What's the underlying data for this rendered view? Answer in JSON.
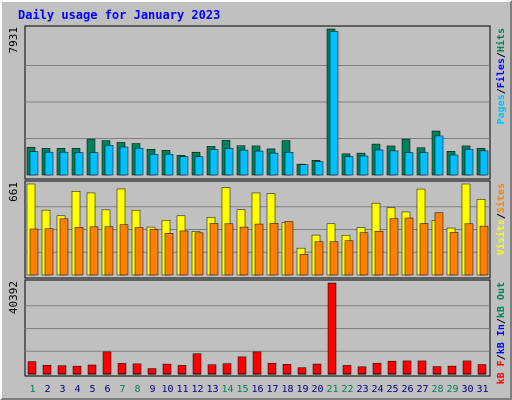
{
  "title": "Daily usage for January 2023",
  "colors": {
    "pages": "#008080",
    "files": "#00c0ff",
    "hits": "#00805c",
    "visits": "#ffff00",
    "sites": "#ff8000",
    "kb_out": "#ff8000",
    "kb_in": "#0000ff",
    "kb_f": "#ff0000",
    "weekend_label": "#00805c",
    "weekday_label": "#000080",
    "title": "#0000ff",
    "plot_bg": "#c0c0c0",
    "grid": "#808080"
  },
  "chart_data": [
    {
      "type": "bar",
      "panel": "top",
      "y_max_label": "7931",
      "ylim": [
        0,
        7931
      ],
      "right_label": [
        {
          "text": "Pages",
          "color": "#00c0ff"
        },
        {
          "text": "/",
          "color": "#000000"
        },
        {
          "text": "Files",
          "color": "#0000ff"
        },
        {
          "text": "/",
          "color": "#000000"
        },
        {
          "text": "Hits",
          "color": "#00805c"
        }
      ],
      "series": [
        {
          "name": "Hits",
          "color": "#00805c",
          "values": [
            1510,
            1450,
            1450,
            1450,
            1950,
            1870,
            1770,
            1710,
            1400,
            1340,
            1070,
            1240,
            1560,
            1880,
            1590,
            1580,
            1420,
            1870,
            590,
            800,
            7931,
            1150,
            1190,
            1680,
            1580,
            1950,
            1480,
            2390,
            1290,
            1580,
            1450
          ]
        },
        {
          "name": "Files",
          "color": "#00c0ff",
          "values": [
            1270,
            1240,
            1240,
            1220,
            1220,
            1610,
            1520,
            1450,
            1120,
            1130,
            990,
            990,
            1380,
            1440,
            1350,
            1300,
            1190,
            1230,
            560,
            720,
            7800,
            1000,
            1030,
            1360,
            1310,
            1220,
            1220,
            2120,
            1090,
            1390,
            1310
          ]
        }
      ]
    },
    {
      "type": "bar",
      "panel": "middle",
      "y_max_label": "661",
      "ylim": [
        0,
        661
      ],
      "right_label": [
        {
          "text": "Visits",
          "color": "#ffff00"
        },
        {
          "text": "/",
          "color": "#000000"
        },
        {
          "text": "Sites",
          "color": "#ff8000"
        }
      ],
      "series": [
        {
          "name": "Visits",
          "color": "#ffff00",
          "values": [
            661,
            471,
            430,
            608,
            596,
            473,
            625,
            471,
            348,
            398,
            430,
            316,
            419,
            635,
            474,
            596,
            591,
            380,
            195,
            290,
            372,
            289,
            345,
            522,
            488,
            458,
            624,
            397,
            341,
            661,
            550
          ]
        },
        {
          "name": "Sites",
          "color": "#ff8000",
          "values": [
            334,
            336,
            408,
            346,
            350,
            351,
            365,
            345,
            331,
            303,
            320,
            306,
            374,
            372,
            348,
            370,
            375,
            388,
            150,
            242,
            242,
            249,
            307,
            318,
            409,
            414,
            374,
            452,
            309,
            372,
            355
          ]
        }
      ]
    },
    {
      "type": "bar",
      "panel": "bottom",
      "y_max_label": "40392",
      "ylim": [
        0,
        40392
      ],
      "right_label": [
        {
          "text": "kB F",
          "color": "#ff0000"
        },
        {
          "text": "/",
          "color": "#000000"
        },
        {
          "text": "kB In",
          "color": "#0000ff"
        },
        {
          "text": "/",
          "color": "#000000"
        },
        {
          "text": "kB Out",
          "color": "#00805c"
        }
      ],
      "series": [
        {
          "name": "kB F",
          "color": "#ff0000",
          "values": [
            5500,
            3900,
            3700,
            3500,
            4000,
            9800,
            4700,
            4500,
            2400,
            4400,
            3800,
            9000,
            4100,
            4600,
            7600,
            9800,
            4800,
            4300,
            2800,
            4400,
            40392,
            3800,
            3200,
            4800,
            5700,
            5800,
            5800,
            3300,
            3500,
            5800,
            4200
          ]
        }
      ],
      "categories": [
        "1",
        "2",
        "3",
        "4",
        "5",
        "6",
        "7",
        "8",
        "9",
        "10",
        "11",
        "12",
        "13",
        "14",
        "15",
        "16",
        "17",
        "18",
        "19",
        "20",
        "21",
        "22",
        "23",
        "24",
        "25",
        "26",
        "27",
        "28",
        "29",
        "30",
        "31"
      ],
      "weekend_days": [
        "1",
        "7",
        "8",
        "14",
        "15",
        "21",
        "22",
        "28",
        "29"
      ]
    }
  ]
}
